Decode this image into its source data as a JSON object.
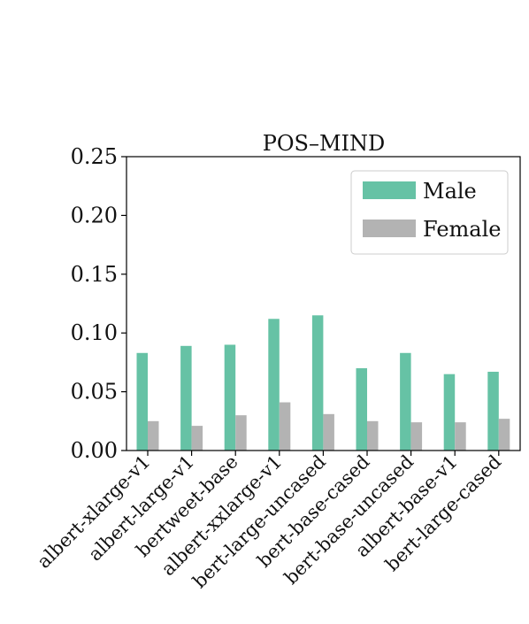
{
  "chart_data": {
    "type": "bar",
    "title": "POS–MIND",
    "xlabel": "",
    "ylabel": "",
    "categories": [
      "albert-xlarge-v1",
      "albert-large-v1",
      "bertweet-base",
      "albert-xxlarge-v1",
      "bert-large-uncased",
      "bert-base-cased",
      "bert-base-uncased",
      "albert-base-v1",
      "bert-large-cased"
    ],
    "series": [
      {
        "name": "Male",
        "color": "#66c2a5",
        "values": [
          0.083,
          0.089,
          0.09,
          0.112,
          0.115,
          0.07,
          0.083,
          0.065,
          0.067
        ]
      },
      {
        "name": "Female",
        "color": "#b3b3b3",
        "values": [
          0.025,
          0.021,
          0.03,
          0.041,
          0.031,
          0.025,
          0.024,
          0.024,
          0.027
        ]
      }
    ],
    "ylim": [
      0,
      0.25
    ],
    "yticks": [
      "0.00",
      "0.05",
      "0.10",
      "0.15",
      "0.20",
      "0.25"
    ],
    "legend_position": "top-right",
    "grid": false
  }
}
